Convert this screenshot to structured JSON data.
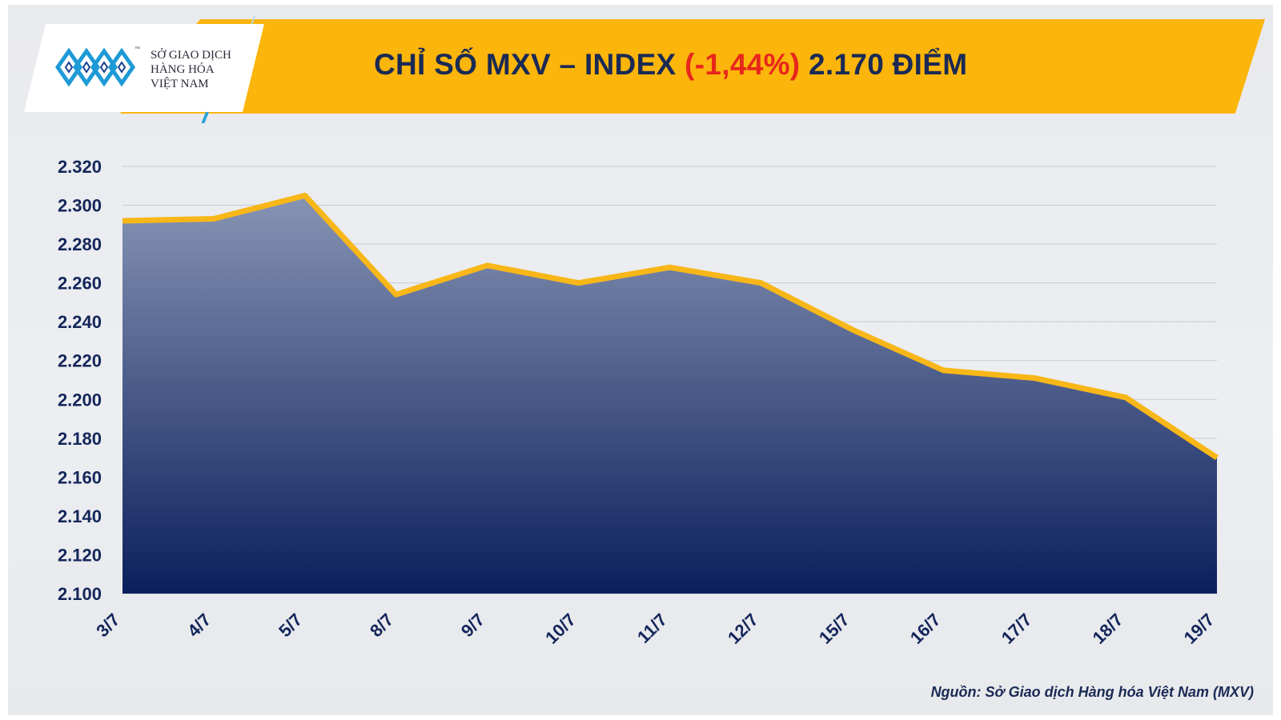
{
  "header": {
    "logo_line1": "SỞ GIAO DỊCH",
    "logo_line2": "HÀNG HÓA",
    "logo_line3": "VIỆT NAM",
    "logo_tm": "™",
    "title_main": "CHỈ SỐ MXV – INDEX ",
    "title_pct": "(-1,44%)",
    "title_value": " 2.170 ĐIỂM"
  },
  "source": "Nguồn: Sở Giao dịch Hàng hóa Việt Nam (MXV)",
  "colors": {
    "banner": "#fbb50b",
    "line": "#f8b718",
    "area_top": "#8794b4",
    "area_bottom": "#0b1f5c",
    "negative": "#e8261c",
    "text": "#14265a"
  },
  "chart_data": {
    "type": "area",
    "title": "CHỈ SỐ MXV – INDEX (-1,44%) 2.170 ĐIỂM",
    "categories": [
      "3/7",
      "4/7",
      "5/7",
      "8/7",
      "9/7",
      "10/7",
      "11/7",
      "12/7",
      "15/7",
      "16/7",
      "17/7",
      "18/7",
      "19/7"
    ],
    "values": [
      2292,
      2293,
      2305,
      2254,
      2269,
      2260,
      2268,
      2260,
      2236,
      2215,
      2211,
      2201,
      2170
    ],
    "y_ticks": [
      "2.100",
      "2.120",
      "2.140",
      "2.160",
      "2.180",
      "2.200",
      "2.220",
      "2.240",
      "2.260",
      "2.280",
      "2.300",
      "2.320"
    ],
    "ylim": [
      2100,
      2320
    ],
    "grid": true,
    "legend": "none"
  }
}
